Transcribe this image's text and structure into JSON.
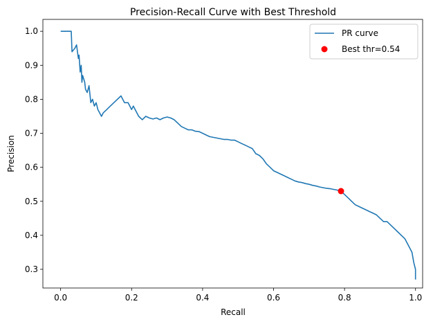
{
  "chart_data": {
    "type": "line",
    "title": "Precision-Recall Curve with Best Threshold",
    "xlabel": "Recall",
    "ylabel": "Precision",
    "xlim": [
      -0.05,
      1.02
    ],
    "ylim": [
      0.245,
      1.035
    ],
    "xticks": [
      0.0,
      0.2,
      0.4,
      0.6,
      0.8,
      1.0
    ],
    "xtick_labels": [
      "0.0",
      "0.2",
      "0.4",
      "0.6",
      "0.8",
      "1.0"
    ],
    "yticks": [
      0.3,
      0.4,
      0.5,
      0.6,
      0.7,
      0.8,
      0.9,
      1.0
    ],
    "ytick_labels": [
      "0.3",
      "0.4",
      "0.5",
      "0.6",
      "0.7",
      "0.8",
      "0.9",
      "1.0"
    ],
    "grid": false,
    "legend_position": "top-right",
    "series": [
      {
        "name": "PR curve",
        "color": "#1f77b4",
        "x": [
          0.0,
          0.03,
          0.032,
          0.04,
          0.045,
          0.05,
          0.052,
          0.055,
          0.058,
          0.06,
          0.062,
          0.065,
          0.068,
          0.07,
          0.075,
          0.08,
          0.085,
          0.09,
          0.095,
          0.1,
          0.105,
          0.11,
          0.115,
          0.12,
          0.13,
          0.14,
          0.15,
          0.16,
          0.17,
          0.175,
          0.18,
          0.19,
          0.2,
          0.205,
          0.21,
          0.22,
          0.23,
          0.24,
          0.25,
          0.26,
          0.27,
          0.28,
          0.29,
          0.3,
          0.31,
          0.32,
          0.33,
          0.34,
          0.35,
          0.36,
          0.37,
          0.38,
          0.39,
          0.4,
          0.41,
          0.42,
          0.43,
          0.44,
          0.45,
          0.46,
          0.47,
          0.48,
          0.49,
          0.5,
          0.51,
          0.52,
          0.53,
          0.54,
          0.55,
          0.56,
          0.57,
          0.58,
          0.59,
          0.6,
          0.61,
          0.62,
          0.63,
          0.64,
          0.65,
          0.66,
          0.67,
          0.68,
          0.69,
          0.7,
          0.71,
          0.72,
          0.73,
          0.74,
          0.75,
          0.76,
          0.77,
          0.78,
          0.79,
          0.8,
          0.81,
          0.82,
          0.83,
          0.84,
          0.85,
          0.86,
          0.87,
          0.88,
          0.89,
          0.9,
          0.91,
          0.92,
          0.93,
          0.94,
          0.95,
          0.96,
          0.97,
          0.98,
          0.99,
          0.995,
          1.0,
          1.0
        ],
        "y": [
          1.0,
          1.0,
          0.94,
          0.95,
          0.96,
          0.92,
          0.93,
          0.88,
          0.9,
          0.85,
          0.87,
          0.86,
          0.85,
          0.83,
          0.82,
          0.84,
          0.79,
          0.8,
          0.78,
          0.79,
          0.77,
          0.76,
          0.75,
          0.76,
          0.77,
          0.78,
          0.79,
          0.8,
          0.81,
          0.8,
          0.79,
          0.79,
          0.77,
          0.78,
          0.77,
          0.75,
          0.74,
          0.75,
          0.745,
          0.742,
          0.745,
          0.74,
          0.745,
          0.748,
          0.745,
          0.74,
          0.73,
          0.72,
          0.715,
          0.71,
          0.71,
          0.706,
          0.705,
          0.7,
          0.695,
          0.69,
          0.688,
          0.686,
          0.684,
          0.682,
          0.682,
          0.68,
          0.68,
          0.675,
          0.67,
          0.665,
          0.66,
          0.655,
          0.64,
          0.635,
          0.625,
          0.61,
          0.6,
          0.59,
          0.585,
          0.58,
          0.575,
          0.57,
          0.565,
          0.56,
          0.557,
          0.555,
          0.552,
          0.55,
          0.547,
          0.545,
          0.542,
          0.54,
          0.538,
          0.537,
          0.535,
          0.533,
          0.53,
          0.52,
          0.51,
          0.5,
          0.49,
          0.485,
          0.48,
          0.475,
          0.47,
          0.465,
          0.46,
          0.45,
          0.44,
          0.44,
          0.43,
          0.42,
          0.41,
          0.4,
          0.39,
          0.37,
          0.35,
          0.32,
          0.3,
          0.27
        ]
      },
      {
        "name": "Best thr=0.54",
        "type": "scatter",
        "color": "#ff0000",
        "x": [
          0.79
        ],
        "y": [
          0.53
        ]
      }
    ]
  }
}
